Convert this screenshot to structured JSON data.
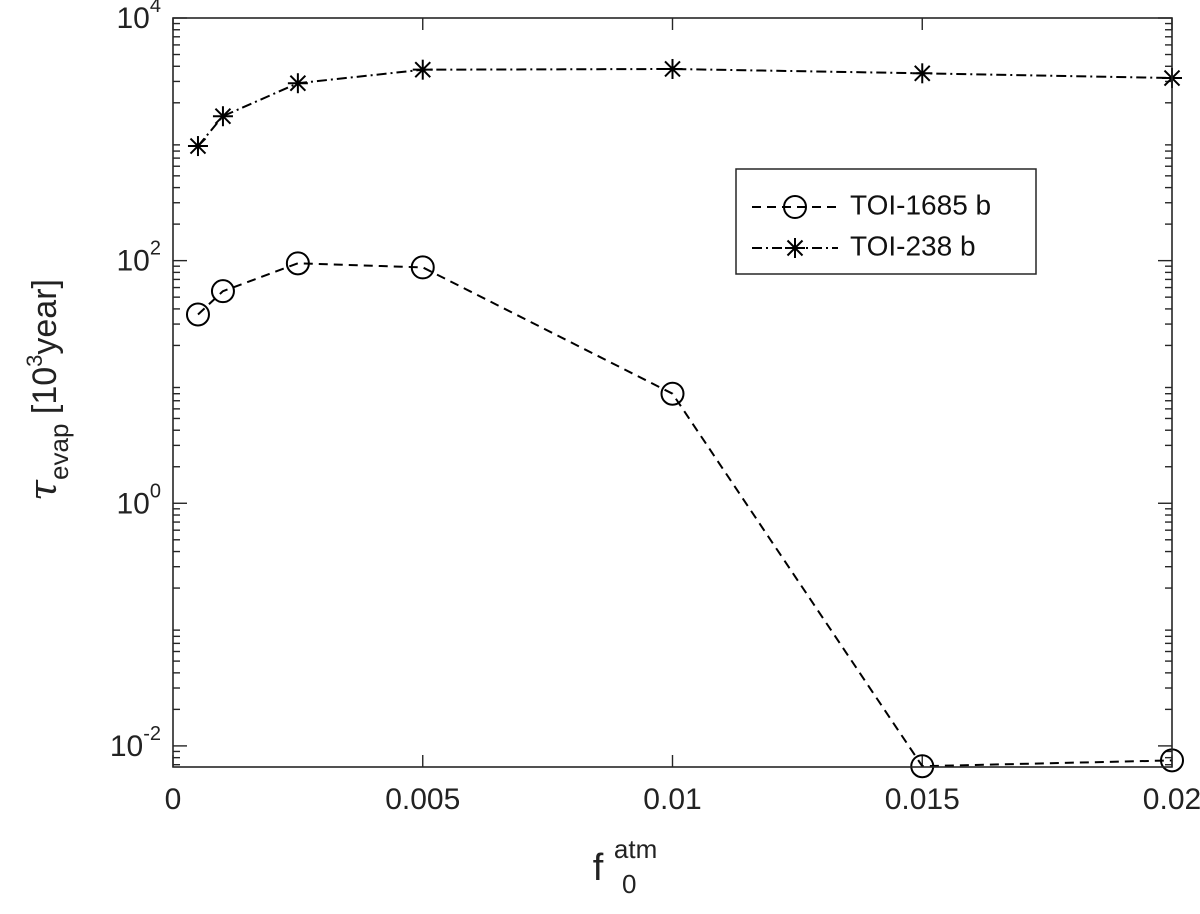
{
  "chart_data": {
    "type": "line",
    "xlabel": {
      "base": "f",
      "sup": "atm",
      "sub": "0"
    },
    "ylabel": {
      "base": "τ",
      "sub": "evap",
      "unit_prefix": " [10",
      "unit_sup": "3",
      "unit_suffix": "year]"
    },
    "x_scale": "linear",
    "y_scale": "log",
    "xlim": [
      0,
      0.02
    ],
    "ylim": [
      0.0067,
      10000
    ],
    "x_ticks": [
      {
        "value": 0,
        "label": "0"
      },
      {
        "value": 0.005,
        "label": "0.005"
      },
      {
        "value": 0.01,
        "label": "0.01"
      },
      {
        "value": 0.015,
        "label": "0.015"
      },
      {
        "value": 0.02,
        "label": "0.02"
      }
    ],
    "y_ticks": [
      {
        "value": 0.01,
        "base": "10",
        "exp": "-2"
      },
      {
        "value": 1,
        "base": "10",
        "exp": "0"
      },
      {
        "value": 100,
        "base": "10",
        "exp": "2"
      },
      {
        "value": 10000,
        "base": "10",
        "exp": "4"
      }
    ],
    "grid": false,
    "legend": "right",
    "series": [
      {
        "name": "TOI-1685 b",
        "line_style": "dashed",
        "marker": "circle",
        "color": "#000000",
        "x": [
          0.0005,
          0.001,
          0.0025,
          0.005,
          0.01,
          0.015,
          0.02
        ],
        "y": [
          36,
          56,
          95,
          88,
          8,
          0.0068,
          0.0076
        ]
      },
      {
        "name": "TOI-238 b",
        "line_style": "dash-dot",
        "marker": "asterisk",
        "color": "#000000",
        "x": [
          0.0005,
          0.001,
          0.0025,
          0.005,
          0.01,
          0.015,
          0.02
        ],
        "y": [
          880,
          1550,
          2900,
          3750,
          3800,
          3500,
          3200
        ]
      }
    ]
  }
}
